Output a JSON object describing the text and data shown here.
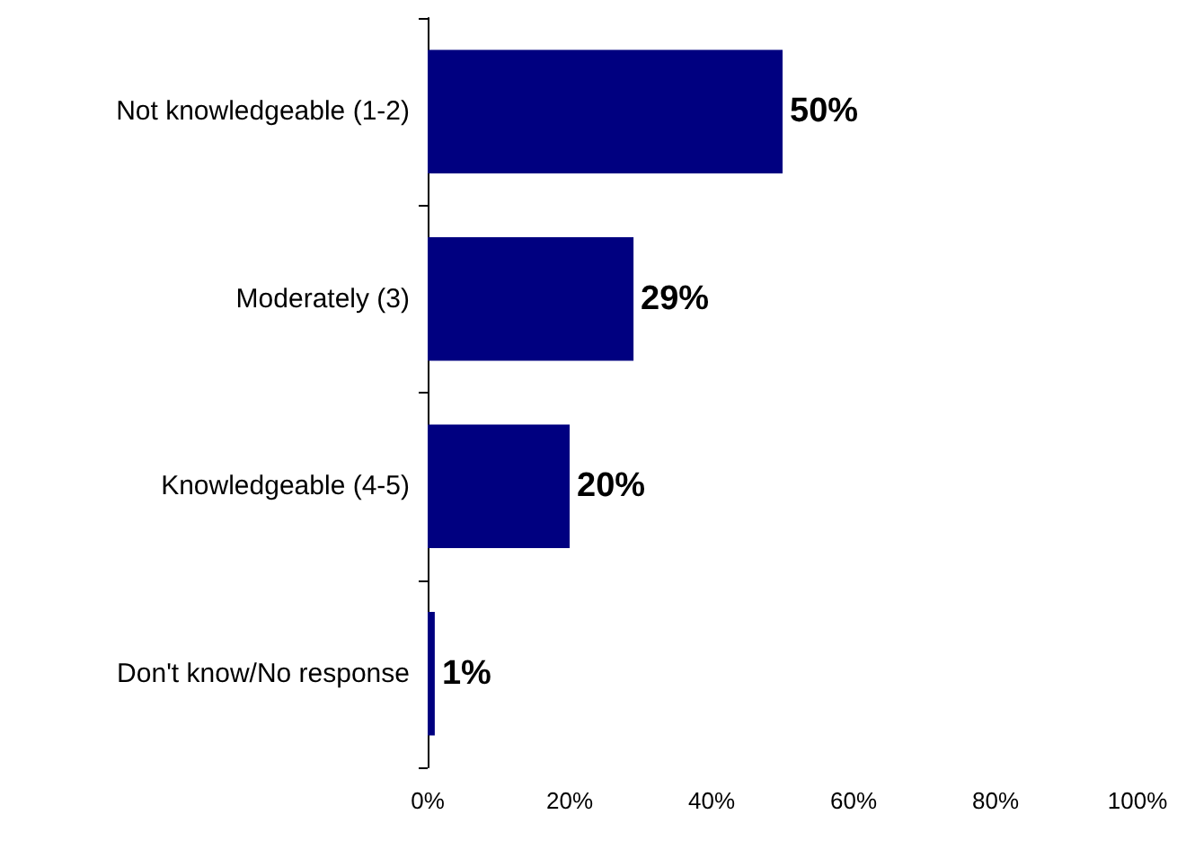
{
  "chart_data": {
    "type": "bar",
    "orientation": "horizontal",
    "categories": [
      "Not knowledgeable (1-2)",
      "Moderately (3)",
      "Knowledgeable (4-5)",
      "Don't know/No response"
    ],
    "values": [
      50,
      29,
      20,
      1
    ],
    "color": "#000080",
    "value_labels": [
      "50%",
      "29%",
      "20%",
      "1%"
    ],
    "xlim": [
      0,
      100
    ],
    "xticks": [
      {
        "value": 0,
        "label": "0%"
      },
      {
        "value": 20,
        "label": "20%"
      },
      {
        "value": 40,
        "label": "40%"
      },
      {
        "value": 60,
        "label": "60%"
      },
      {
        "value": 80,
        "label": "80%"
      },
      {
        "value": 100,
        "label": "100%"
      }
    ],
    "grid": false
  }
}
